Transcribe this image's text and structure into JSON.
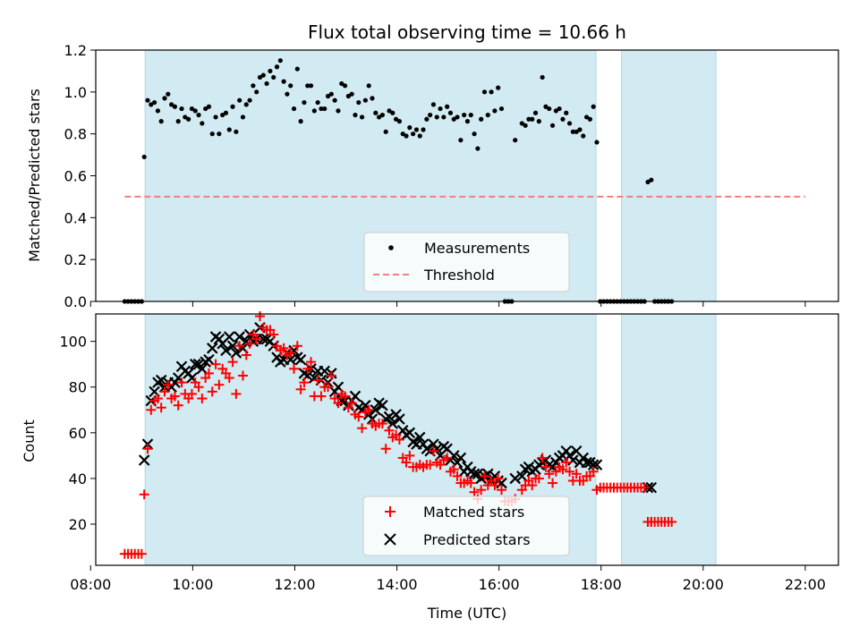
{
  "chart_data": [
    {
      "type": "scatter",
      "title": "Flux total observing time = 10.66 h",
      "ylabel": "Matched/Predicted stars",
      "ylim": [
        0,
        1.2
      ],
      "yticks": [
        "0.0",
        "0.2",
        "0.4",
        "0.6",
        "0.8",
        "1.0",
        "1.2"
      ],
      "xlim": [
        "08:06",
        "22:39"
      ],
      "grid": false,
      "legend_position": "bottom-center",
      "shaded_intervals": [
        [
          "09:04",
          "17:54"
        ],
        [
          "18:24",
          "20:15"
        ]
      ],
      "shade_color": "#add8e6",
      "series": [
        {
          "name": "Measurements",
          "color": "#000000",
          "marker": "dot",
          "points": [
            [
              "08:40",
              0
            ],
            [
              "08:44",
              0
            ],
            [
              "08:48",
              0
            ],
            [
              "08:52",
              0
            ],
            [
              "08:56",
              0
            ],
            [
              "09:00",
              0
            ],
            [
              "09:03",
              0.69
            ],
            [
              "09:07",
              0.96
            ],
            [
              "09:11",
              0.94
            ],
            [
              "09:15",
              0.95
            ],
            [
              "09:19",
              0.91
            ],
            [
              "09:23",
              0.86
            ],
            [
              "09:27",
              0.97
            ],
            [
              "09:31",
              0.99
            ],
            [
              "09:35",
              0.94
            ],
            [
              "09:39",
              0.93
            ],
            [
              "09:43",
              0.86
            ],
            [
              "09:47",
              0.92
            ],
            [
              "09:51",
              0.88
            ],
            [
              "09:55",
              0.87
            ],
            [
              "09:59",
              0.92
            ],
            [
              "10:03",
              0.91
            ],
            [
              "10:07",
              0.89
            ],
            [
              "10:11",
              0.85
            ],
            [
              "10:15",
              0.92
            ],
            [
              "10:19",
              0.93
            ],
            [
              "10:23",
              0.8
            ],
            [
              "10:27",
              0.88
            ],
            [
              "10:31",
              0.8
            ],
            [
              "10:35",
              0.89
            ],
            [
              "10:39",
              0.9
            ],
            [
              "10:43",
              0.82
            ],
            [
              "10:47",
              0.93
            ],
            [
              "10:51",
              0.81
            ],
            [
              "10:55",
              0.96
            ],
            [
              "10:59",
              0.88
            ],
            [
              "11:03",
              0.94
            ],
            [
              "11:07",
              0.96
            ],
            [
              "11:11",
              1.03
            ],
            [
              "11:15",
              1.0
            ],
            [
              "11:19",
              1.07
            ],
            [
              "11:23",
              1.08
            ],
            [
              "11:27",
              1.04
            ],
            [
              "11:31",
              1.1
            ],
            [
              "11:35",
              1.07
            ],
            [
              "11:39",
              1.12
            ],
            [
              "11:43",
              1.15
            ],
            [
              "11:47",
              1.05
            ],
            [
              "11:51",
              0.99
            ],
            [
              "11:55",
              1.03
            ],
            [
              "11:59",
              0.92
            ],
            [
              "12:03",
              1.11
            ],
            [
              "12:07",
              0.86
            ],
            [
              "12:11",
              0.95
            ],
            [
              "12:15",
              1.03
            ],
            [
              "12:19",
              1.03
            ],
            [
              "12:23",
              0.91
            ],
            [
              "12:27",
              0.95
            ],
            [
              "12:31",
              0.92
            ],
            [
              "12:35",
              0.92
            ],
            [
              "12:39",
              0.98
            ],
            [
              "12:43",
              0.99
            ],
            [
              "12:47",
              0.96
            ],
            [
              "12:51",
              0.91
            ],
            [
              "12:55",
              1.04
            ],
            [
              "12:59",
              1.03
            ],
            [
              "13:03",
              0.98
            ],
            [
              "13:07",
              0.99
            ],
            [
              "13:11",
              0.89
            ],
            [
              "13:15",
              0.95
            ],
            [
              "13:19",
              0.88
            ],
            [
              "13:23",
              0.96
            ],
            [
              "13:27",
              1.03
            ],
            [
              "13:31",
              0.97
            ],
            [
              "13:35",
              0.9
            ],
            [
              "13:39",
              0.88
            ],
            [
              "13:43",
              0.89
            ],
            [
              "13:47",
              0.81
            ],
            [
              "13:51",
              0.91
            ],
            [
              "13:55",
              0.9
            ],
            [
              "13:59",
              0.87
            ],
            [
              "14:03",
              0.86
            ],
            [
              "14:07",
              0.8
            ],
            [
              "14:11",
              0.79
            ],
            [
              "14:15",
              0.83
            ],
            [
              "14:19",
              0.8
            ],
            [
              "14:23",
              0.82
            ],
            [
              "14:27",
              0.79
            ],
            [
              "14:31",
              0.82
            ],
            [
              "14:35",
              0.87
            ],
            [
              "14:39",
              0.89
            ],
            [
              "14:43",
              0.94
            ],
            [
              "14:47",
              0.88
            ],
            [
              "14:51",
              0.92
            ],
            [
              "14:55",
              0.88
            ],
            [
              "14:59",
              0.93
            ],
            [
              "15:03",
              0.9
            ],
            [
              "15:07",
              0.87
            ],
            [
              "15:11",
              0.88
            ],
            [
              "15:15",
              0.77
            ],
            [
              "15:19",
              0.89
            ],
            [
              "15:23",
              0.86
            ],
            [
              "15:27",
              0.89
            ],
            [
              "15:31",
              0.8
            ],
            [
              "15:35",
              0.73
            ],
            [
              "15:39",
              0.87
            ],
            [
              "15:43",
              1.0
            ],
            [
              "15:47",
              0.89
            ],
            [
              "15:51",
              1.0
            ],
            [
              "15:55",
              0.91
            ],
            [
              "15:59",
              1.02
            ],
            [
              "16:03",
              0.92
            ],
            [
              "16:07",
              0
            ],
            [
              "16:11",
              0
            ],
            [
              "16:15",
              0
            ],
            [
              "16:19",
              0.77
            ],
            [
              "16:27",
              0.85
            ],
            [
              "16:31",
              0.84
            ],
            [
              "16:35",
              0.87
            ],
            [
              "16:39",
              0.87
            ],
            [
              "16:43",
              0.9
            ],
            [
              "16:47",
              0.86
            ],
            [
              "16:51",
              1.07
            ],
            [
              "16:55",
              0.93
            ],
            [
              "16:59",
              0.92
            ],
            [
              "17:03",
              0.84
            ],
            [
              "17:07",
              0.91
            ],
            [
              "17:11",
              0.92
            ],
            [
              "17:15",
              0.87
            ],
            [
              "17:19",
              0.9
            ],
            [
              "17:23",
              0.85
            ],
            [
              "17:27",
              0.81
            ],
            [
              "17:31",
              0.81
            ],
            [
              "17:35",
              0.82
            ],
            [
              "17:39",
              0.79
            ],
            [
              "17:43",
              0.88
            ],
            [
              "17:47",
              0.87
            ],
            [
              "17:51",
              0.93
            ],
            [
              "17:55",
              0.76
            ],
            [
              "17:59",
              0
            ],
            [
              "18:03",
              0
            ],
            [
              "18:07",
              0
            ],
            [
              "18:11",
              0
            ],
            [
              "18:15",
              0
            ],
            [
              "18:19",
              0
            ],
            [
              "18:23",
              0
            ],
            [
              "18:27",
              0
            ],
            [
              "18:31",
              0
            ],
            [
              "18:35",
              0
            ],
            [
              "18:39",
              0
            ],
            [
              "18:43",
              0
            ],
            [
              "18:47",
              0
            ],
            [
              "18:51",
              0
            ],
            [
              "18:55",
              0.57
            ],
            [
              "18:59",
              0.58
            ],
            [
              "19:03",
              0
            ],
            [
              "19:07",
              0
            ],
            [
              "19:11",
              0
            ],
            [
              "19:15",
              0
            ],
            [
              "19:19",
              0
            ],
            [
              "19:23",
              0
            ]
          ]
        },
        {
          "name": "Threshold",
          "color": "#f08080",
          "style": "dashed",
          "points": [
            [
              "08:40",
              0.5
            ],
            [
              "22:00",
              0.5
            ]
          ]
        }
      ]
    },
    {
      "type": "scatter",
      "xlabel": "Time (UTC)",
      "ylabel": "Count",
      "ylim": [
        2,
        112
      ],
      "yticks": [
        20,
        40,
        60,
        80,
        100
      ],
      "xticks": [
        "08:00",
        "10:00",
        "12:00",
        "14:00",
        "16:00",
        "18:00",
        "20:00",
        "22:00"
      ],
      "xlim": [
        "08:06",
        "22:39"
      ],
      "grid": false,
      "legend_position": "bottom-center",
      "shaded_intervals": [
        [
          "09:04",
          "17:54"
        ],
        [
          "18:24",
          "20:15"
        ]
      ],
      "shade_color": "#add8e6",
      "series": [
        {
          "name": "Matched stars",
          "color": "#ff0000",
          "marker": "plus",
          "points": []
        },
        {
          "name": "Predicted stars",
          "color": "#000000",
          "marker": "x",
          "points": []
        }
      ]
    }
  ]
}
